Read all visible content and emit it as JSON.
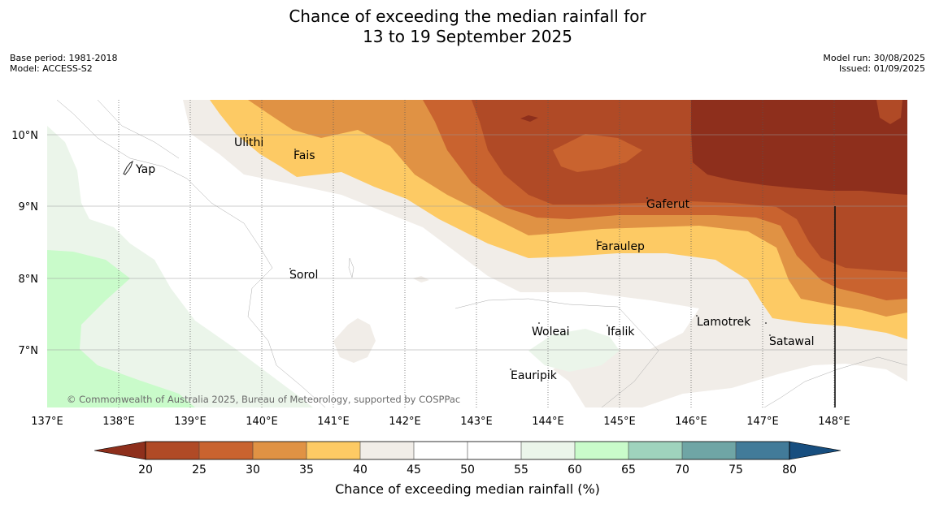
{
  "title_line1": "Chance of exceeding the median rainfall for",
  "title_line2": "13 to 19 September 2025",
  "meta_left": {
    "base_period": "Base period: 1981-2018",
    "model": "Model: ACCESS-S2"
  },
  "meta_right": {
    "model_run": "Model run: 30/08/2025",
    "issued": "Issued: 01/09/2025"
  },
  "copyright": "© Commonwealth of Australia 2025, Bureau of Meteorology, supported by COSPPac",
  "x_ticks": [
    "137°E",
    "138°E",
    "139°E",
    "140°E",
    "141°E",
    "142°E",
    "143°E",
    "144°E",
    "145°E",
    "146°E",
    "147°E",
    "148°E"
  ],
  "y_ticks": [
    "10°N",
    "9°N",
    "8°N",
    "7°N"
  ],
  "places": [
    {
      "name": "Yap"
    },
    {
      "name": "Ulithi"
    },
    {
      "name": "Fais"
    },
    {
      "name": "Gaferut"
    },
    {
      "name": "Faraulep"
    },
    {
      "name": "Sorol"
    },
    {
      "name": "Woleai"
    },
    {
      "name": "Ifalik"
    },
    {
      "name": "Lamotrek"
    },
    {
      "name": "Satawal"
    },
    {
      "name": "Eauripik"
    }
  ],
  "colorbar": {
    "label": "Chance of exceeding median rainfall (%)",
    "ticks": [
      "20",
      "25",
      "30",
      "35",
      "40",
      "45",
      "50",
      "55",
      "60",
      "65",
      "70",
      "75",
      "80"
    ],
    "colors": {
      "below_20": "#8e2f1c",
      "20_25": "#b04a26",
      "25_30": "#c9632f",
      "30_35": "#e09244",
      "35_40": "#fdca64",
      "40_45": "#f1ede8",
      "45_50": "#ffffff",
      "50_55": "#ffffff",
      "55_60": "#ebf5ea",
      "60_65": "#c9fbca",
      "65_70": "#9fd3bd",
      "70_75": "#6fa5a5",
      "75_80": "#427b99",
      "above_80": "#174e7f"
    }
  }
}
